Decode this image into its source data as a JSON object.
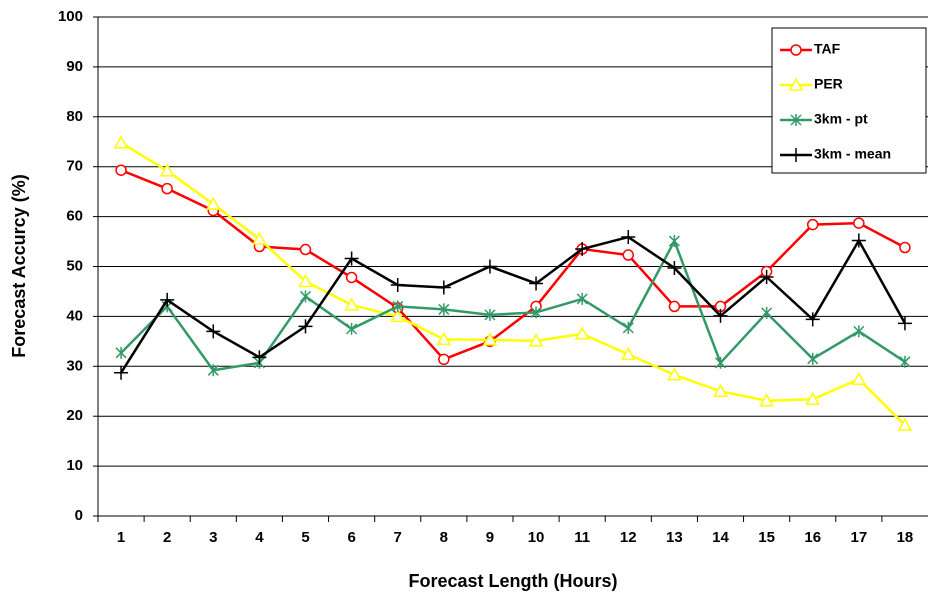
{
  "chart_data": {
    "type": "line",
    "y_label": "Forecast Accurcy (%)",
    "x_label": "Forecast Length (Hours)",
    "categories": [
      "1",
      "2",
      "3",
      "4",
      "5",
      "6",
      "7",
      "8",
      "9",
      "10",
      "11",
      "12",
      "13",
      "14",
      "15",
      "16",
      "17",
      "18"
    ],
    "series": [
      {
        "name": "TAF",
        "color": "#ff0000",
        "marker": "circle",
        "values": [
          69.3,
          65.6,
          61.2,
          54,
          53.4,
          47.8,
          41.7,
          31.4,
          35,
          42,
          53.5,
          52.3,
          42,
          42,
          49,
          58.4,
          58.7,
          53.8
        ]
      },
      {
        "name": "PER",
        "color": "#ffff00",
        "marker": "triangle",
        "values": [
          74.8,
          69.2,
          62.5,
          55.5,
          47,
          42.3,
          40,
          35.4,
          35.3,
          35.1,
          36.5,
          32.4,
          28.3,
          25,
          23.1,
          23.4,
          27.4,
          18.2
        ]
      },
      {
        "name": "3km - pt",
        "color": "#339966",
        "marker": "star",
        "values": [
          32.7,
          42,
          29.2,
          30.7,
          44,
          37.5,
          42,
          41.4,
          40.3,
          40.8,
          43.5,
          37.7,
          55.1,
          30.7,
          40.7,
          31.5,
          37,
          30.9
        ]
      },
      {
        "name": "3km - mean",
        "color": "#000000",
        "marker": "plus",
        "values": [
          28.7,
          43.3,
          37,
          31.8,
          38,
          51.6,
          46.3,
          45.8,
          50,
          46.6,
          53.5,
          55.9,
          49.7,
          40.1,
          47.9,
          39.4,
          55.2,
          38.6
        ]
      }
    ],
    "ylim": [
      0,
      100
    ],
    "yticks": [
      0,
      10,
      20,
      30,
      40,
      50,
      60,
      70,
      80,
      90,
      100
    ],
    "grid": true,
    "legend": "top-right"
  }
}
